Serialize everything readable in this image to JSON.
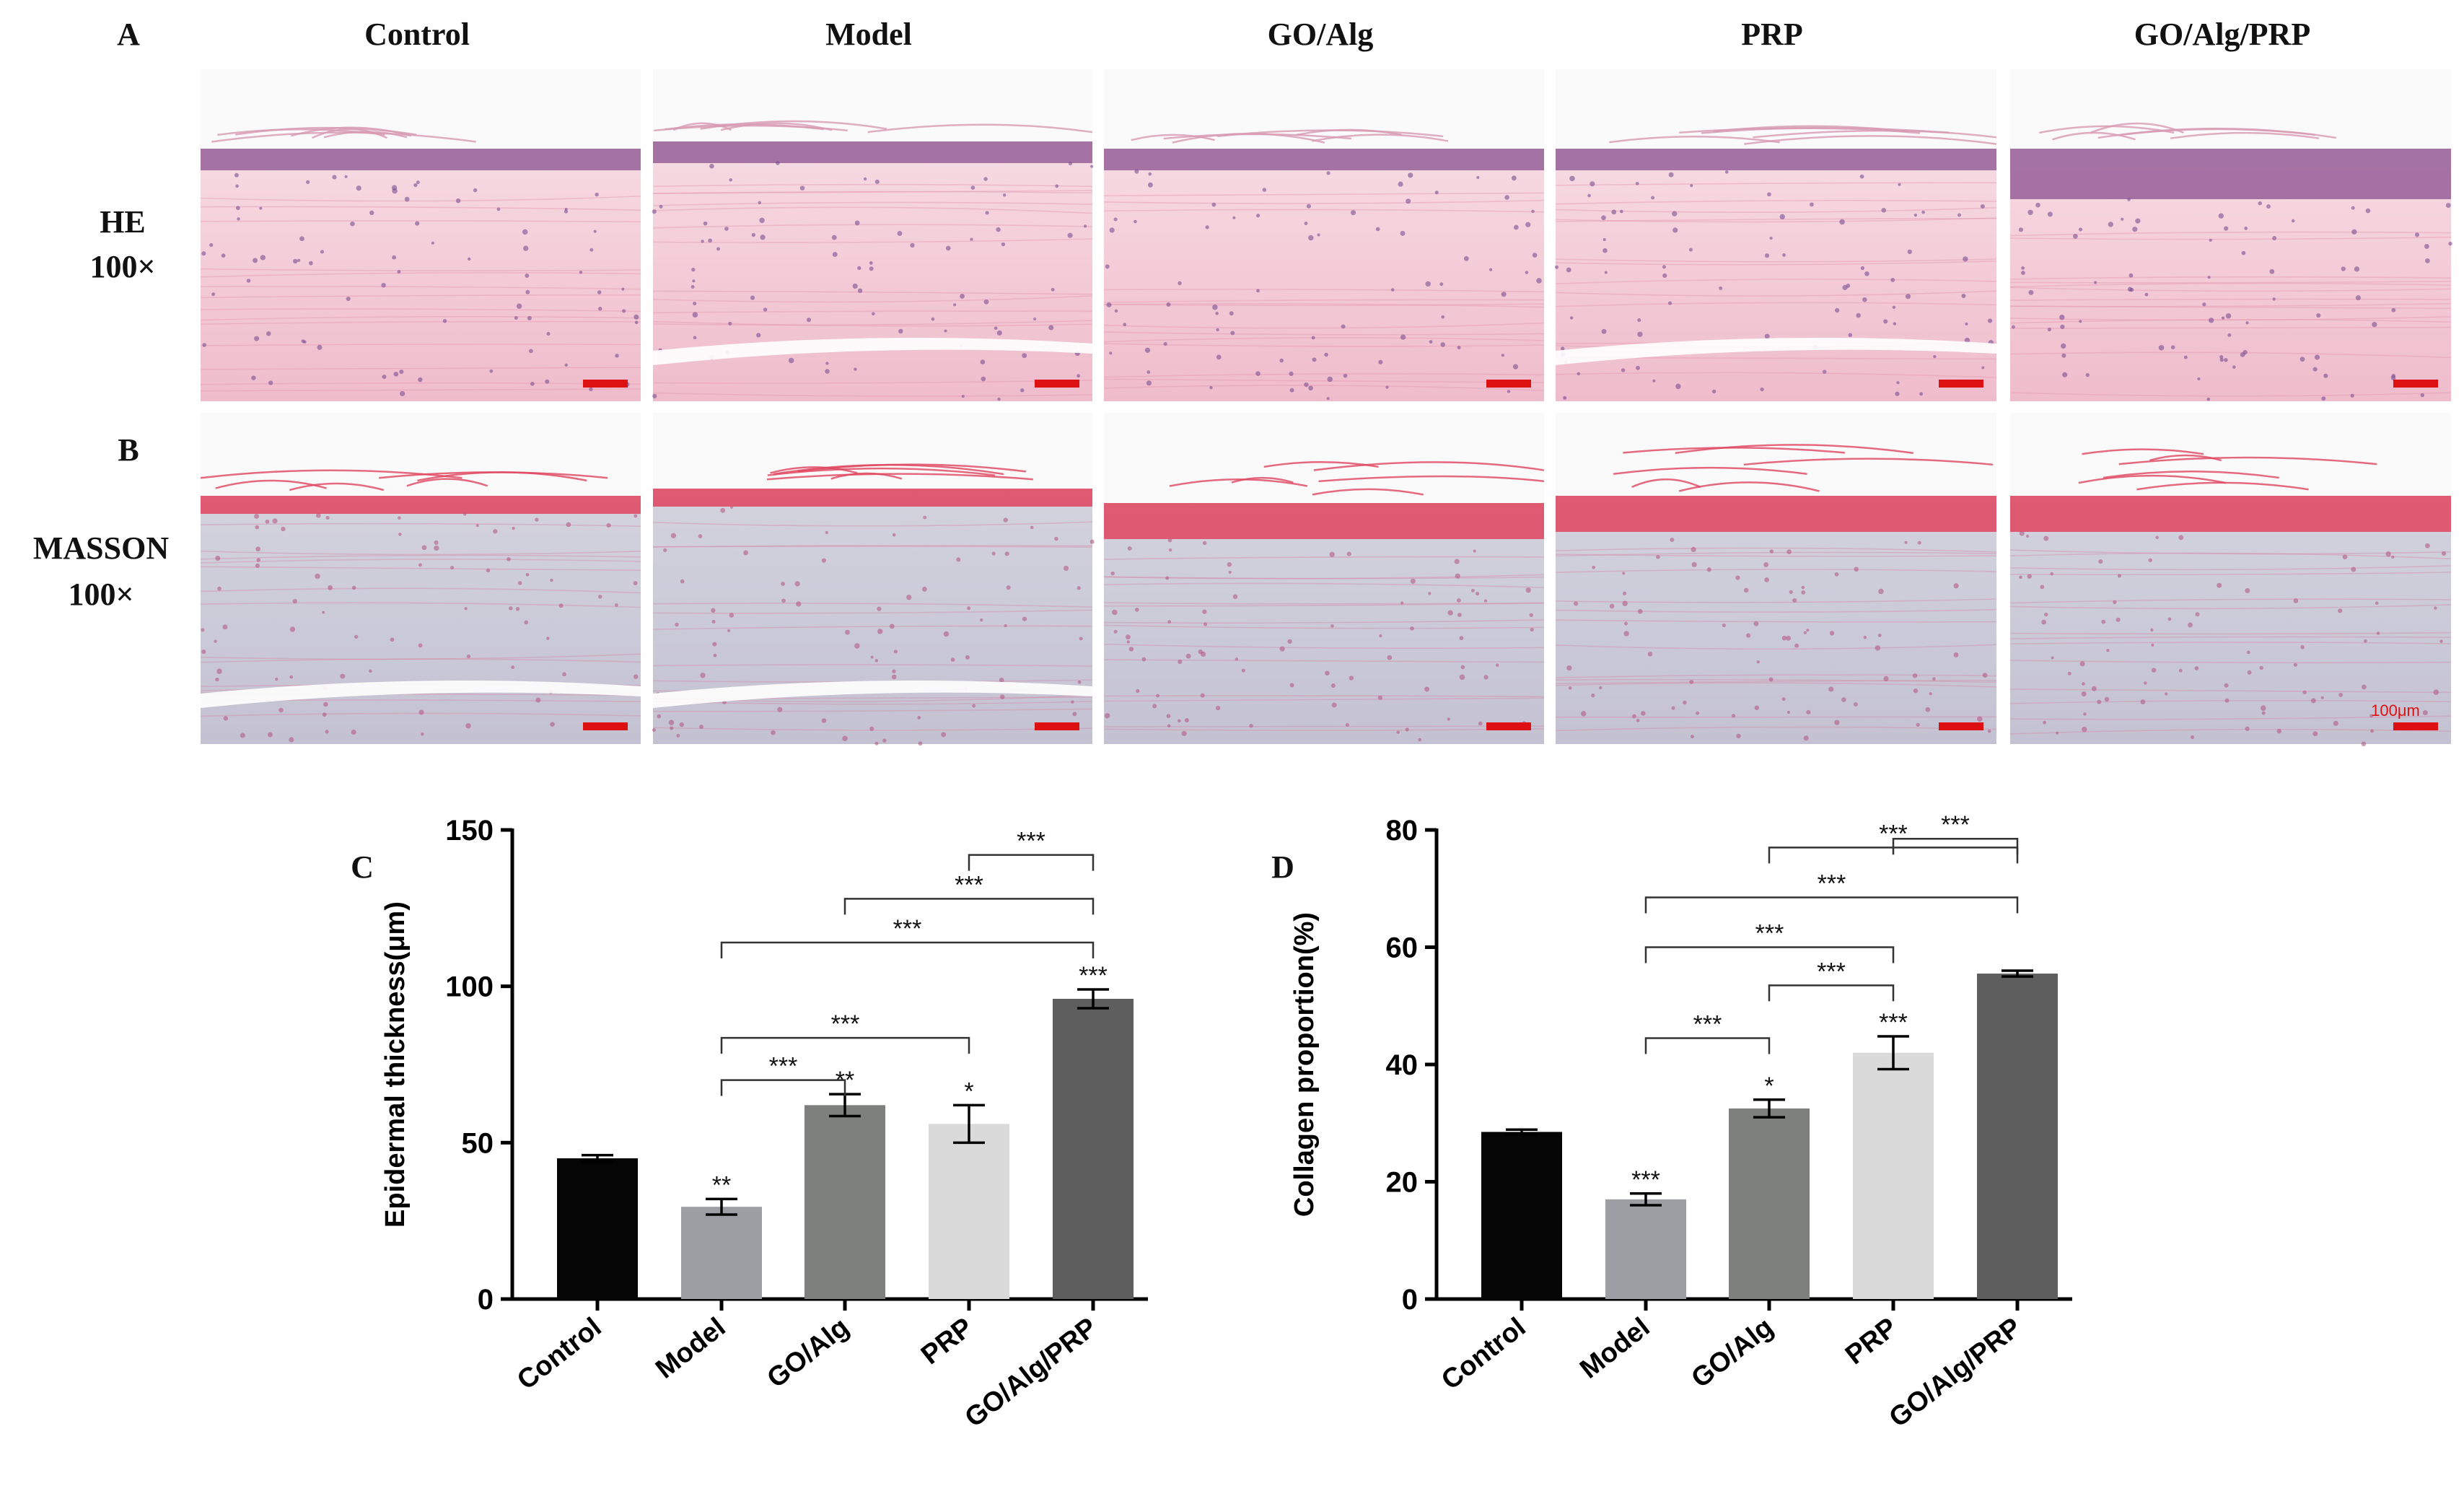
{
  "panels": {
    "label_A": "A",
    "label_B": "B",
    "label_C": "C",
    "label_D": "D"
  },
  "micrographs": {
    "columns": [
      "Control",
      "Model",
      "GO/Alg",
      "PRP",
      "GO/Alg/PRP"
    ],
    "rows": [
      {
        "stain": "HE",
        "magnification": "100×"
      },
      {
        "stain": "MASSON",
        "magnification": "100×"
      }
    ],
    "scale_bar_label": "100μm",
    "colors": {
      "he_background": "#f3c6d3",
      "he_epidermis": "#8a4f8f",
      "masson_background": "#c9c9d6",
      "masson_epidermis": "#e0455f",
      "scale_bar": "#dd1111"
    }
  },
  "chart_data": [
    {
      "type": "bar",
      "panel": "C",
      "categories": [
        "Control",
        "Model",
        "GO/Alg",
        "PRP",
        "GO/Alg/PRP"
      ],
      "values": [
        45,
        29.5,
        62,
        56,
        96
      ],
      "errors": [
        1,
        2.5,
        3.5,
        6,
        3
      ],
      "significance_labels": [
        "",
        "**",
        "**",
        "*",
        "***"
      ],
      "comparisons": [
        {
          "from": 3,
          "to": 4,
          "label": "***"
        },
        {
          "from": 2,
          "to": 4,
          "label": "***"
        },
        {
          "from": 1,
          "to": 4,
          "label": "***"
        },
        {
          "from": 1,
          "to": 3,
          "label": "***"
        },
        {
          "from": 1,
          "to": 2,
          "label": "***"
        }
      ],
      "ylabel": "Epidermal thickness(μm)",
      "xlabel": "",
      "ylim": [
        0,
        150
      ],
      "yticks": [
        0,
        50,
        100,
        150
      ],
      "bar_colors": [
        "#050505",
        "#9d9ea4",
        "#7e807e",
        "#dadada",
        "#5e5e5e"
      ]
    },
    {
      "type": "bar",
      "panel": "D",
      "categories": [
        "Control",
        "Model",
        "GO/Alg",
        "PRP",
        "GO/Alg/PRP"
      ],
      "values": [
        28.5,
        17,
        32.5,
        42,
        55.5
      ],
      "errors": [
        0.4,
        1,
        1.5,
        2.8,
        0.5
      ],
      "significance_labels": [
        "",
        "***",
        "*",
        "***",
        ""
      ],
      "comparisons": [
        {
          "from": 3,
          "to": 4,
          "label": "***"
        },
        {
          "from": 2,
          "to": 4,
          "label": "***"
        },
        {
          "from": 1,
          "to": 4,
          "label": "***"
        },
        {
          "from": 1,
          "to": 3,
          "label": "***"
        },
        {
          "from": 2,
          "to": 3,
          "label": "***"
        },
        {
          "from": 1,
          "to": 2,
          "label": "***"
        }
      ],
      "ylabel": "Collagen proportion(%)",
      "xlabel": "",
      "ylim": [
        0,
        80
      ],
      "yticks": [
        0,
        20,
        40,
        60,
        80
      ],
      "bar_colors": [
        "#050505",
        "#9d9ea4",
        "#7e807e",
        "#dadada",
        "#5e5e5e"
      ]
    }
  ]
}
